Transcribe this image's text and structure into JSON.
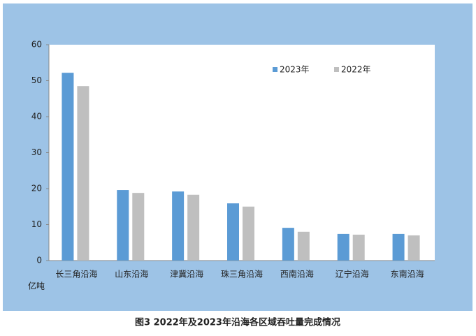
{
  "chart_data": {
    "type": "bar",
    "title": "图3  2022年及2023年沿海各区域吞吐量完成情况",
    "y_label": "亿吨",
    "categories": [
      "长三角沿海",
      "山东沿海",
      "津冀沿海",
      "珠三角沿海",
      "西南沿海",
      "辽宁沿海",
      "东南沿海"
    ],
    "series": [
      {
        "name": "2023年",
        "color": "#5b9bd5",
        "values": [
          52.2,
          19.6,
          19.2,
          15.9,
          9.1,
          7.4,
          7.4
        ]
      },
      {
        "name": "2022年",
        "color": "#bfbfbf",
        "values": [
          48.5,
          18.8,
          18.3,
          15.0,
          8.0,
          7.2,
          7.0
        ]
      }
    ],
    "ylim": [
      0,
      60
    ],
    "yticks": [
      0,
      10,
      20,
      30,
      40,
      50,
      60
    ],
    "grid": false,
    "legend": "top-right"
  }
}
